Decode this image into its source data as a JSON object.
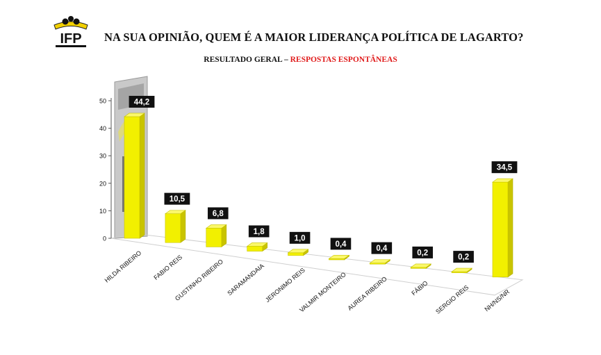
{
  "header": {
    "title": "NA SUA OPINIÃO, QUEM É A MAIOR LIDERANÇA POLÍTICA DE LAGARTO?",
    "subtitle_prefix": "RESULTADO GERAL – ",
    "subtitle_highlight": "RESPOSTAS ESPONTÂNEAS",
    "logo_text": "IFP"
  },
  "colors": {
    "bar_front": "#f2f000",
    "bar_side": "#c9c400",
    "bar_top": "#fbf86a",
    "label_bg": "#111111",
    "label_text": "#ffffff",
    "subtitle_highlight": "#e01b1b"
  },
  "chart_data": {
    "type": "bar",
    "categories": [
      "HILDA RIBEIRO",
      "FABIO REIS",
      "GUSTINHO RIBEIRO",
      "SARAMANDAIA",
      "JERONIMO REIS",
      "VALMIR MONTEIRO",
      "AUREA RIBEIRO",
      "FÁBIO",
      "SERGIO REIS",
      "NH/NS/NR"
    ],
    "values": [
      44.2,
      10.5,
      6.8,
      1.8,
      1.0,
      0.4,
      0.4,
      0.2,
      0.2,
      34.5
    ],
    "value_labels": [
      "44,2",
      "10,5",
      "6,8",
      "1,8",
      "1,0",
      "0,4",
      "0,4",
      "0,2",
      "0,2",
      "34,5"
    ],
    "yticks": [
      "0",
      "10",
      "20",
      "30",
      "40",
      "50"
    ],
    "ylim": [
      0,
      50
    ],
    "title": "",
    "xlabel": "",
    "ylabel": "",
    "grid": false,
    "legend": "none"
  }
}
